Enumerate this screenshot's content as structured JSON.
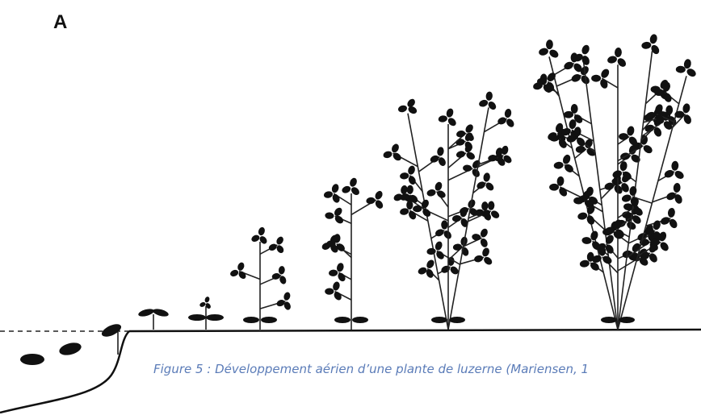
{
  "figure": {
    "label": "A",
    "caption": "Figure 5 : Développement aérien d’une plante de luzerne (Mariensen, 1"
  }
}
